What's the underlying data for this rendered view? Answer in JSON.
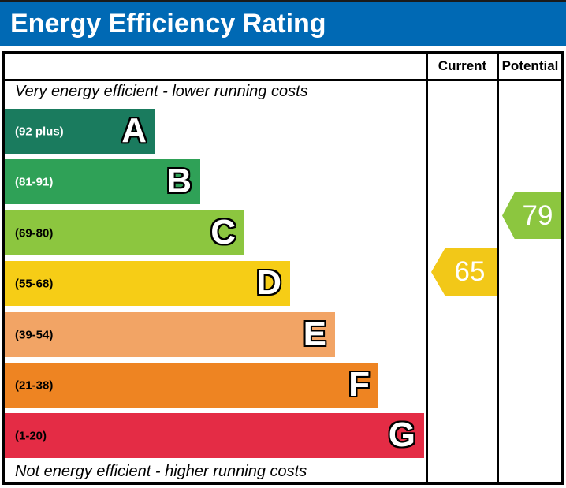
{
  "title": "Energy Efficiency Rating",
  "columns": {
    "current": "Current",
    "potential": "Potential"
  },
  "notes": {
    "top": "Very energy efficient - lower running costs",
    "bottom": "Not energy efficient - higher running costs"
  },
  "colors": {
    "header_bg": "#0069b4",
    "header_text": "#ffffff",
    "border": "#000000"
  },
  "chart_data": {
    "type": "bar",
    "subtype": "epc-energy-efficiency-rating",
    "bands": [
      {
        "letter": "A",
        "range_label": "(92 plus)",
        "min": 92,
        "max": 100,
        "color": "#1a7b5e",
        "label_color": "#ffffff"
      },
      {
        "letter": "B",
        "range_label": "(81-91)",
        "min": 81,
        "max": 91,
        "color": "#2fa157",
        "label_color": "#ffffff"
      },
      {
        "letter": "C",
        "range_label": "(69-80)",
        "min": 69,
        "max": 80,
        "color": "#8cc63f",
        "label_color": "#000000"
      },
      {
        "letter": "D",
        "range_label": "(55-68)",
        "min": 55,
        "max": 68,
        "color": "#f6cd16",
        "label_color": "#000000"
      },
      {
        "letter": "E",
        "range_label": "(39-54)",
        "min": 39,
        "max": 54,
        "color": "#f2a465",
        "label_color": "#000000"
      },
      {
        "letter": "F",
        "range_label": "(21-38)",
        "min": 21,
        "max": 38,
        "color": "#ee8422",
        "label_color": "#000000"
      },
      {
        "letter": "G",
        "range_label": "(1-20)",
        "min": 1,
        "max": 20,
        "color": "#e42c45",
        "label_color": "#000000"
      }
    ],
    "markers": {
      "current": {
        "value": 65,
        "band": "D",
        "color": "#f2c818",
        "text_color": "#ffffff"
      },
      "potential": {
        "value": 79,
        "band": "C",
        "color": "#8cc63f",
        "text_color": "#ffffff"
      }
    }
  }
}
